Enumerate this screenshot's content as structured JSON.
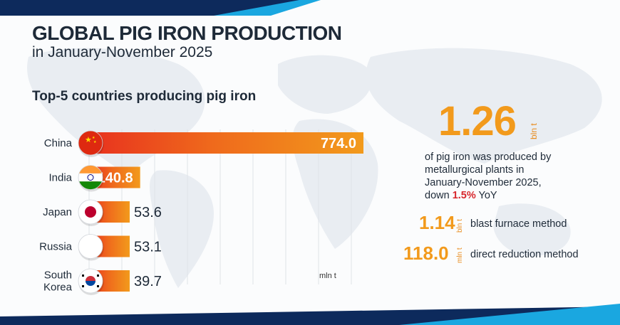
{
  "header": {
    "title": "GLOBAL PIG IRON PRODUCTION",
    "subtitle": "in January-November 2025"
  },
  "colors": {
    "accent_orange": "#f29a1c",
    "bar_red": "#e8321e",
    "navy": "#0d2a5c",
    "blue": "#1aa7e0",
    "down_red": "#d7262b"
  },
  "chart_data": {
    "type": "bar",
    "title": "Top-5 countries producing pig iron",
    "categories": [
      "China",
      "India",
      "Japan",
      "Russia",
      "South Korea"
    ],
    "category_lines": [
      [
        "China"
      ],
      [
        "India"
      ],
      [
        "Japan"
      ],
      [
        "Russia"
      ],
      [
        "South",
        "Korea"
      ]
    ],
    "flag_icons": [
      "china-flag-icon",
      "india-flag-icon",
      "japan-flag-icon",
      "russia-flag-icon",
      "south-korea-flag-icon"
    ],
    "values": [
      774.0,
      140.8,
      53.6,
      53.1,
      39.7
    ],
    "value_labels": [
      "774.0",
      "140.8",
      "53.6",
      "53.1",
      "39.7"
    ],
    "unit": "mln t",
    "grid": true,
    "orientation": "horizontal"
  },
  "summary": {
    "total_value": "1.26",
    "total_unit": "bln t",
    "description_lines": [
      "of pig iron was produced by",
      "metallurgical plants in",
      "January-November 2025,"
    ],
    "change_prefix": "down ",
    "change_value": "1.5%",
    "change_suffix": " YoY",
    "methods": [
      {
        "value": "1.14",
        "unit": "bln t",
        "label": "blast furnace method"
      },
      {
        "value": "118.0",
        "unit": "mln t",
        "label": "direct reduction method"
      }
    ]
  }
}
